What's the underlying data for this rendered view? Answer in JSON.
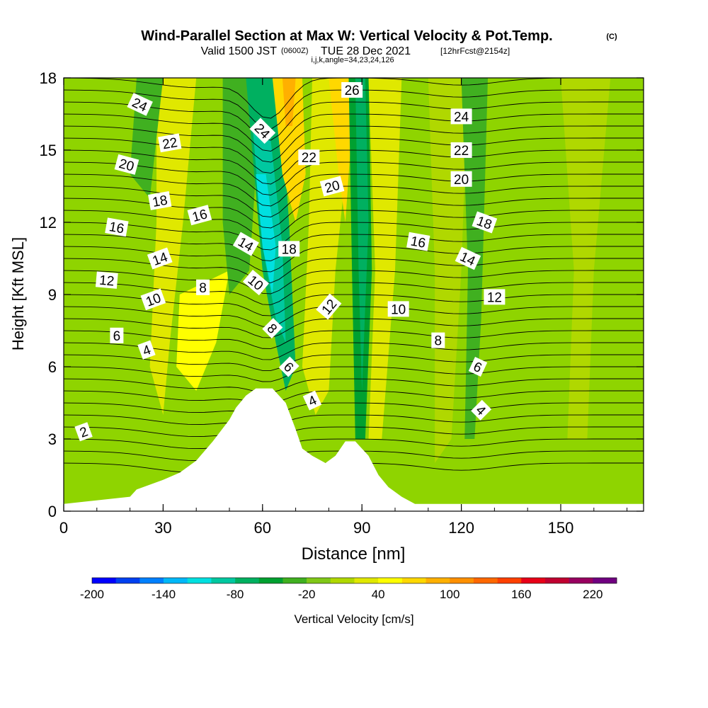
{
  "header": {
    "title": "Wind-Parallel Section at Max W: Vertical Velocity & Pot.Temp.",
    "title_badge": "(C)",
    "valid_prefix": "Valid 1500 JST",
    "valid_zone": "(0600Z)",
    "valid_date": "TUE 28 Dec 2021",
    "forecast": "[12hrFcst@2154z]",
    "grid_info": "i,j,k,angle=34,23,24,126"
  },
  "chart_data": {
    "type": "heatmap",
    "title": "Wind-Parallel Section at Max W: Vertical Velocity & Pot.Temp.",
    "xlabel": "Distance [nm]",
    "ylabel": "Height [Kft MSL]",
    "xlim": [
      0,
      175
    ],
    "ylim": [
      0,
      18
    ],
    "xticks": [
      "0",
      "30",
      "60",
      "90",
      "120",
      "150"
    ],
    "yticks": [
      "0",
      "3",
      "6",
      "9",
      "12",
      "15",
      "18"
    ],
    "colorbar": {
      "label": "Vertical Velocity [cm/s]",
      "tick_labels": [
        "-200",
        "-140",
        "-80",
        "-20",
        "40",
        "100",
        "160",
        "220"
      ],
      "levels": [
        -200,
        -180,
        -160,
        -140,
        -120,
        -100,
        -80,
        -60,
        -40,
        -20,
        0,
        20,
        40,
        60,
        80,
        100,
        120,
        140,
        160,
        180,
        200,
        220,
        240
      ],
      "colors": [
        "#0000ff",
        "#0040f0",
        "#0080ff",
        "#00b8f8",
        "#00e0e0",
        "#00c8a0",
        "#00b060",
        "#00a030",
        "#40b020",
        "#80c818",
        "#b0d800",
        "#e0e800",
        "#ffff00",
        "#ffd800",
        "#ffb000",
        "#ff9000",
        "#ff6800",
        "#ff4000",
        "#e80018",
        "#c00030",
        "#980060",
        "#700080"
      ]
    },
    "terrain": {
      "x_nm": [
        0,
        20,
        22,
        30,
        35,
        40,
        45,
        50,
        52,
        55,
        58,
        60,
        63,
        67,
        70,
        72,
        75,
        79,
        82,
        85,
        88,
        92,
        95,
        98,
        102,
        106,
        110,
        175
      ],
      "height_kft": [
        0.3,
        0.6,
        0.9,
        1.3,
        1.6,
        2.1,
        2.9,
        3.8,
        4.3,
        4.8,
        5.1,
        5.1,
        5.1,
        4.5,
        3.4,
        2.6,
        2.3,
        2.0,
        2.3,
        2.9,
        2.9,
        2.3,
        1.5,
        1.0,
        0.6,
        0.3,
        0.3,
        0.3
      ]
    },
    "contour_labels": [
      {
        "text": "24",
        "x": 23,
        "y": 16.9,
        "rot": 25
      },
      {
        "text": "22",
        "x": 32,
        "y": 15.3,
        "rot": -10
      },
      {
        "text": "20",
        "x": 19,
        "y": 14.4,
        "rot": 15
      },
      {
        "text": "18",
        "x": 29,
        "y": 12.9,
        "rot": -10
      },
      {
        "text": "16",
        "x": 41,
        "y": 12.3,
        "rot": -15
      },
      {
        "text": "16",
        "x": 16,
        "y": 11.8,
        "rot": 10
      },
      {
        "text": "14",
        "x": 29,
        "y": 10.5,
        "rot": -20
      },
      {
        "text": "12",
        "x": 13,
        "y": 9.6,
        "rot": 5
      },
      {
        "text": "10",
        "x": 27,
        "y": 8.8,
        "rot": -20
      },
      {
        "text": "8",
        "x": 42,
        "y": 9.3,
        "rot": 0
      },
      {
        "text": "6",
        "x": 16,
        "y": 7.3,
        "rot": 0
      },
      {
        "text": "4",
        "x": 25,
        "y": 6.7,
        "rot": -20
      },
      {
        "text": "2",
        "x": 6,
        "y": 3.3,
        "rot": -20
      },
      {
        "text": "24",
        "x": 60,
        "y": 15.8,
        "rot": 45
      },
      {
        "text": "14",
        "x": 55,
        "y": 11.1,
        "rot": 30
      },
      {
        "text": "18",
        "x": 68,
        "y": 10.9,
        "rot": 0
      },
      {
        "text": "10",
        "x": 58,
        "y": 9.5,
        "rot": 40
      },
      {
        "text": "8",
        "x": 63,
        "y": 7.6,
        "rot": 45
      },
      {
        "text": "6",
        "x": 68,
        "y": 6.0,
        "rot": 45
      },
      {
        "text": "4",
        "x": 75,
        "y": 4.6,
        "rot": -25
      },
      {
        "text": "26",
        "x": 87,
        "y": 17.5,
        "rot": 0
      },
      {
        "text": "22",
        "x": 74,
        "y": 14.7,
        "rot": 0
      },
      {
        "text": "20",
        "x": 81,
        "y": 13.5,
        "rot": -15
      },
      {
        "text": "12",
        "x": 80,
        "y": 8.5,
        "rot": -50
      },
      {
        "text": "10",
        "x": 101,
        "y": 8.4,
        "rot": 0
      },
      {
        "text": "24",
        "x": 120,
        "y": 16.4,
        "rot": 0
      },
      {
        "text": "22",
        "x": 120,
        "y": 15.0,
        "rot": 0
      },
      {
        "text": "20",
        "x": 120,
        "y": 13.8,
        "rot": 0
      },
      {
        "text": "18",
        "x": 127,
        "y": 12.0,
        "rot": 20
      },
      {
        "text": "16",
        "x": 107,
        "y": 11.2,
        "rot": 10
      },
      {
        "text": "14",
        "x": 122,
        "y": 10.5,
        "rot": 25
      },
      {
        "text": "12",
        "x": 130,
        "y": 8.9,
        "rot": 0
      },
      {
        "text": "8",
        "x": 113,
        "y": 7.1,
        "rot": 0
      },
      {
        "text": "6",
        "x": 125,
        "y": 6.0,
        "rot": 25
      },
      {
        "text": "4",
        "x": 126,
        "y": 4.2,
        "rot": 45
      }
    ]
  }
}
